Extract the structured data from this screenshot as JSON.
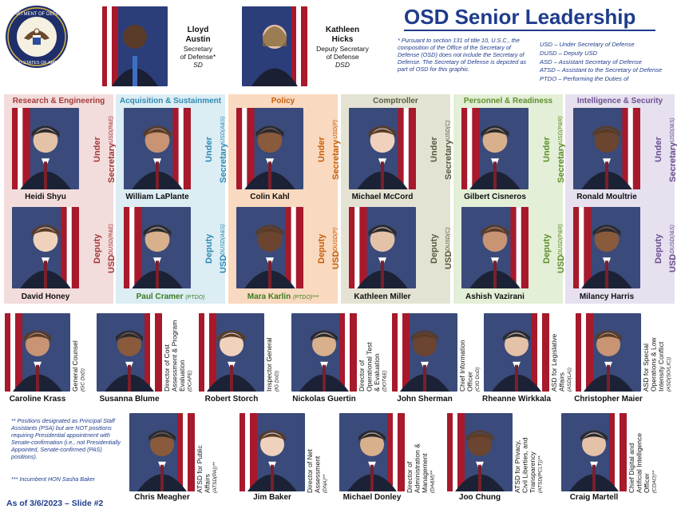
{
  "header": {
    "seal_text": "DEPARTMENT OF DEFENSE · UNITED STATES OF AMERICA",
    "title": "OSD Senior Leadership",
    "note": "*  Pursuant to section 131 of title 10, U.S.C., the composition of the Office of the Secretary of Defense (OSD) does not include the Secretary of Defense. The Secretary of Defense is depicted as part of OSD for this graphic.",
    "abbreviations": [
      "USD – Under Secretary of Defense",
      "DUSD – Deputy USD",
      "ASD – Assistant Secretary of Defense",
      "ATSD – Assistant to the Secretary of Defense",
      "PTDO – Performing the Duties of"
    ]
  },
  "top_leaders": [
    {
      "name_line1": "Lloyd",
      "name_line2": "Austin",
      "title_line1": "Secretary",
      "title_line2": "of Defense*",
      "abbr": "SD"
    },
    {
      "name_line1": "Kathleen",
      "name_line2": "Hicks",
      "title_line1": "Deputy Secretary",
      "title_line2": "of Defense",
      "abbr": "DSD"
    }
  ],
  "columns": [
    {
      "header": "Research & Engineering",
      "color": "#a23b3b",
      "bg": "#f3dcdc",
      "usd_name": "Heidi Shyu",
      "usd_title": "Under Secretary",
      "usd_abbr": "USD(R&E)",
      "dusd_name": "David Honey",
      "dusd_tag": "",
      "dusd_title": "Deputy USD",
      "dusd_abbr": "DUSD(R&E)"
    },
    {
      "header": "Acquisition & Sustainment",
      "color": "#2e8bb5",
      "bg": "#dcedf4",
      "usd_name": "William LaPlante",
      "usd_title": "Under Secretary",
      "usd_abbr": "USD(A&S)",
      "dusd_name": "Paul Cramer",
      "dusd_tag": "(PTDO)",
      "dusd_title": "Deputy USD",
      "dusd_abbr": "DUSD(A&S)"
    },
    {
      "header": "Policy",
      "color": "#c75f0c",
      "bg": "#f9d9bf",
      "usd_name": "Colin Kahl",
      "usd_title": "Under Secretary",
      "usd_abbr": "USD(P)",
      "dusd_name": "Mara Karlin",
      "dusd_tag": "(PTDO)***",
      "dusd_title": "Deputy USD",
      "dusd_abbr": "DUSD(P)"
    },
    {
      "header": "Comptroller",
      "color": "#5b5b43",
      "bg": "#e4e3d3",
      "usd_name": "Michael McCord",
      "usd_title": "Under Secretary",
      "usd_abbr": "USD(C)",
      "dusd_name": "Kathleen Miller",
      "dusd_tag": "",
      "dusd_title": "Deputy USD",
      "dusd_abbr": "DUSD(C)"
    },
    {
      "header": "Personnel & Readiness",
      "color": "#5f8f2f",
      "bg": "#e3efd6",
      "usd_name": "Gilbert Cisneros",
      "usd_title": "Under Secretary",
      "usd_abbr": "USD(P&R)",
      "dusd_name": "Ashish Vazirani",
      "dusd_tag": "",
      "dusd_title": "Deputy USD",
      "dusd_abbr": "DUSD(P&R)"
    },
    {
      "header": "Intelligence & Security",
      "color": "#6b4f8f",
      "bg": "#e6e0ef",
      "usd_name": "Ronald Moultrie",
      "usd_title": "Under Secretary",
      "usd_abbr": "USD(I&S)",
      "dusd_name": "Milancy Harris",
      "dusd_tag": "",
      "dusd_title": "Deputy USD",
      "dusd_abbr": "DUSD(I&S)"
    }
  ],
  "row1": [
    {
      "name": "Caroline Krass",
      "role_lines": [
        "General Counsel"
      ],
      "abbr": "(GC DoD)"
    },
    {
      "name": "Susanna Blume",
      "role_lines": [
        "Director of Cost",
        "Assessment & Program",
        "Evaluation"
      ],
      "abbr": "(DCAPE)"
    },
    {
      "name": "Robert Storch",
      "role_lines": [
        "Inspector General"
      ],
      "abbr": "(IG DoD)"
    },
    {
      "name": "Nickolas Guertin",
      "role_lines": [
        "Director of",
        "Operational Test",
        "& Evaluation"
      ],
      "abbr": "(DOT&E)"
    },
    {
      "name": "John Sherman",
      "role_lines": [
        "Chief Information",
        "Officer"
      ],
      "abbr": "(CIO DoD)"
    },
    {
      "name": "Rheanne Wirkkala",
      "role_lines": [
        "ASD for Legislative",
        "Affairs"
      ],
      "abbr": "(ASD(LA))"
    },
    {
      "name": "Christopher Maier",
      "role_lines": [
        "ASD for Special",
        "Operations & Low",
        "Intensity Conflict"
      ],
      "abbr": "(ASD(SO/LIC))"
    }
  ],
  "row2": [
    {
      "name": "Chris Meagher",
      "role_lines": [
        "ATSD for Public",
        "Affairs"
      ],
      "abbr": "(ATSD(PA))**"
    },
    {
      "name": "Jim Baker",
      "role_lines": [
        "Director of Net",
        "Assessment"
      ],
      "abbr": "(DNA)**"
    },
    {
      "name": "Michael Donley",
      "role_lines": [
        "Director of",
        "Administration &",
        "Management"
      ],
      "abbr": "(DA&M)**"
    },
    {
      "name": "Joo Chung",
      "role_lines": [
        "ATSD for Privacy,",
        "Civil Liberties, and",
        "Transparency"
      ],
      "abbr": "(ATSD(PCLT))**"
    },
    {
      "name": "Craig Martell",
      "role_lines": [
        "Chief Digital and",
        "Artificial Intelligence",
        "Officer"
      ],
      "abbr": "(CDAO)**"
    }
  ],
  "footer": {
    "note1": "**  Positions designated as Principal Staff Assistants (PSA) but are NOT positions requiring Presidential appointment with Senate-confirmation (i.e., not Presidentially Appointed, Senate-confirmed (PAS) positions).",
    "note2": "***  Incumbent HON Sasha Baker",
    "as_of": "As of 3/6/2023 – Slide #2"
  },
  "colors": {
    "brand_blue": "#1f3c8c"
  }
}
